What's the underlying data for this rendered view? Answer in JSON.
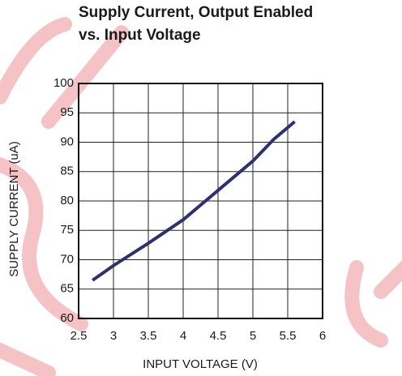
{
  "chart_data": {
    "type": "line",
    "title": [
      "Supply Current, Output Enabled",
      "vs. Input Voltage"
    ],
    "x_label": "INPUT VOLTAGE (V)",
    "y_label": "SUPPLY CURRENT (uA)",
    "x": [
      2.7,
      3,
      3.5,
      4,
      4.5,
      5,
      5.3,
      5.6
    ],
    "series": [
      {
        "color": "#2e3170",
        "values": [
          66.5,
          69,
          72.8,
          76.8,
          81.8,
          86.8,
          90.5,
          93.5
        ]
      }
    ],
    "xlim": [
      2.5,
      6
    ],
    "xticks": [
      2.5,
      3,
      3.5,
      4,
      4.5,
      5,
      5.5,
      6
    ],
    "ylim": [
      60,
      100
    ],
    "yticks": [
      60,
      65,
      70,
      75,
      80,
      85,
      90,
      95,
      100
    ],
    "grid": true
  }
}
